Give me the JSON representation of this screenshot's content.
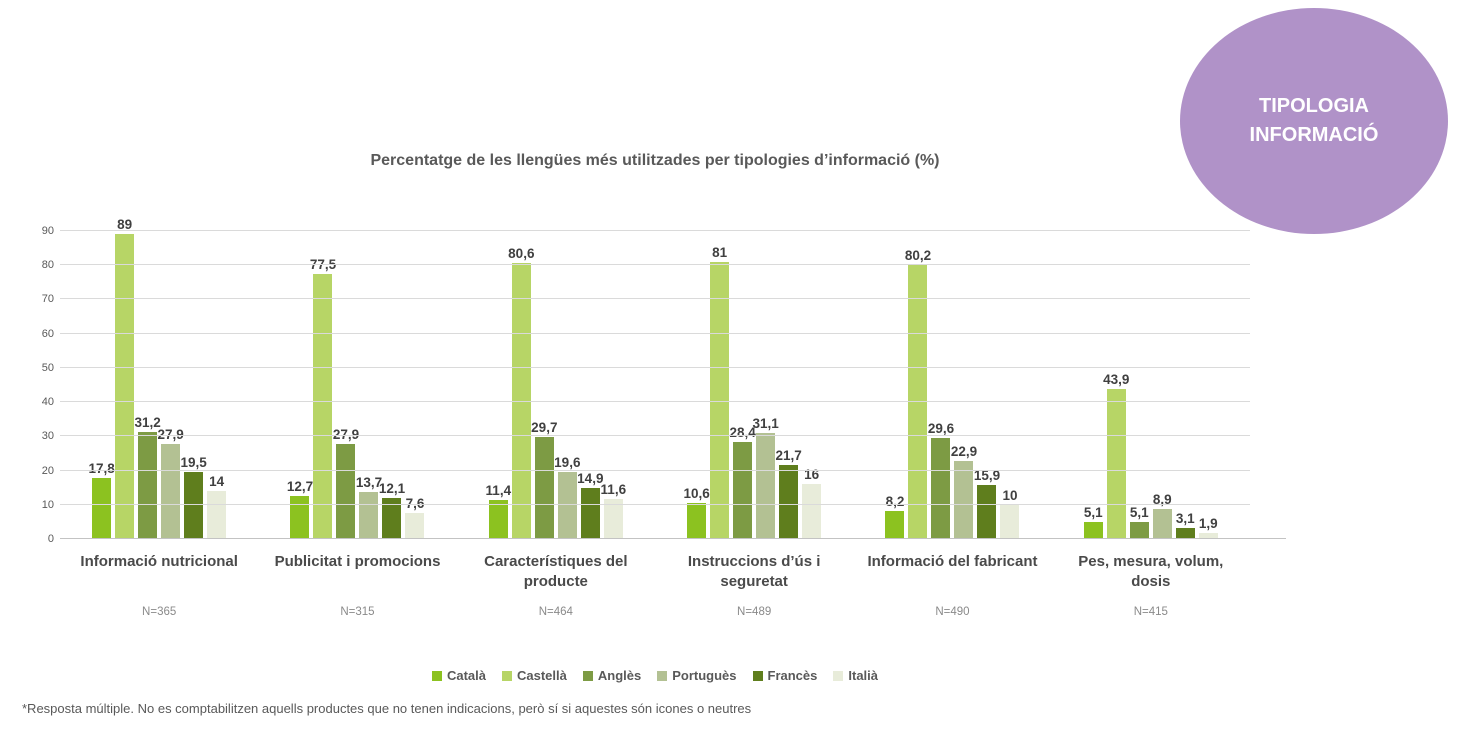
{
  "badge": {
    "line1": "TIPOLOGIA",
    "line2": "INFORMACIÓ",
    "color": "#b092c8"
  },
  "footnote": "*Resposta múltiple. No es comptabilitzen aquells productes que no tenen indicacions, però sí si aquestes són icones o neutres",
  "chart_data": {
    "type": "bar",
    "title": "Percentatge de les llengües més utilitzades per tipologies d’informació (%)",
    "categories": [
      "Informació nutricional",
      "Publicitat i promocions",
      "Característiques del producte",
      "Instruccions d’ús i seguretat",
      "Informació del fabricant",
      "Pes, mesura, volum, dosis"
    ],
    "n_labels": [
      "N=365",
      "N=315",
      "N=464",
      "N=489",
      "N=490",
      "N=415"
    ],
    "series": [
      {
        "name": "Català",
        "color": "#8cc220",
        "values": [
          17.8,
          12.7,
          11.4,
          10.6,
          8.2,
          5.1
        ]
      },
      {
        "name": "Castellà",
        "color": "#b7d566",
        "values": [
          89,
          77.5,
          80.6,
          81,
          80.2,
          43.9
        ]
      },
      {
        "name": "Anglès",
        "color": "#7d9b44",
        "values": [
          31.2,
          27.9,
          29.7,
          28.4,
          29.6,
          5.1
        ]
      },
      {
        "name": "Portuguès",
        "color": "#b3c193",
        "values": [
          27.9,
          13.7,
          19.6,
          31.1,
          22.9,
          8.9
        ]
      },
      {
        "name": "Francès",
        "color": "#5f7e1d",
        "values": [
          19.5,
          12.1,
          14.9,
          21.7,
          15.9,
          3.1
        ]
      },
      {
        "name": "Italià",
        "color": "#e8ecda",
        "values": [
          14,
          7.6,
          11.6,
          16,
          10,
          1.9
        ]
      }
    ],
    "ylim": [
      0,
      90
    ],
    "yticks": [
      0,
      10,
      20,
      30,
      40,
      50,
      60,
      70,
      80,
      90
    ],
    "grid": true,
    "legend_position": "bottom",
    "decimal_separator": ","
  }
}
